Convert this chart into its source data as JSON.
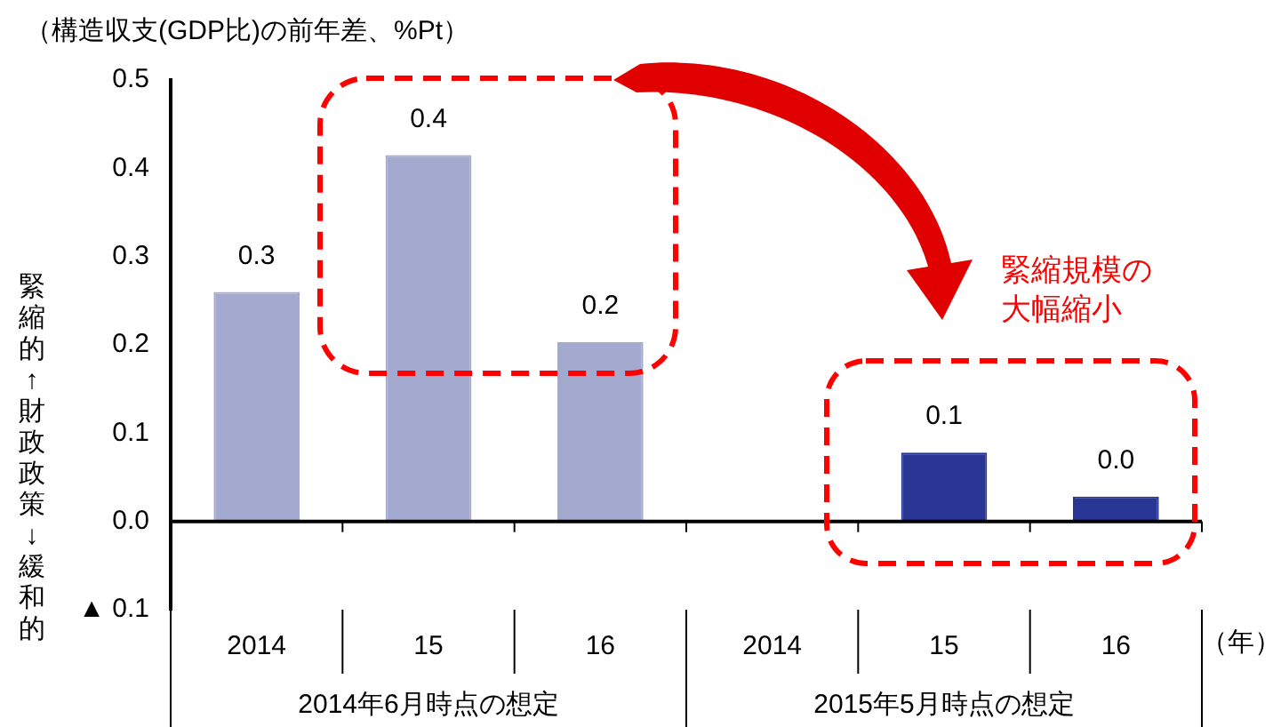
{
  "chart_data": {
    "type": "bar",
    "subtitle": "（構造収支(GDP比)の前年差、%Pt）",
    "ylabel": "緊縮的↑財政政策↓緩和的",
    "categories": [
      "2014",
      "15",
      "16",
      "2014",
      "15",
      "16"
    ],
    "values": [
      0.26,
      0.415,
      0.203,
      null,
      0.078,
      0.028
    ],
    "value_labels": [
      "0.3",
      "0.4",
      "0.2",
      null,
      "0.1",
      "0.0"
    ],
    "colors": [
      "#a4a9d0",
      "#a4a9d0",
      "#a4a9d0",
      "#a4a9d0",
      "#283593",
      "#283593"
    ],
    "ylim": [
      -0.1,
      0.5
    ],
    "yticks": [
      {
        "value": -0.1,
        "label": "▲ 0.1"
      },
      {
        "value": 0,
        "label": "0.0"
      },
      0.1,
      0.2,
      0.3,
      0.4,
      0.5
    ],
    "annotations": [
      "2014年6月時点の想定",
      "2015年5月時点の想定",
      "（年）",
      "緊縮規模の大幅縮小"
    ],
    "ref_lines": [
      {
        "axis": "y",
        "value": 0,
        "color": "#000000"
      }
    ],
    "grid": false,
    "legend": false
  }
}
